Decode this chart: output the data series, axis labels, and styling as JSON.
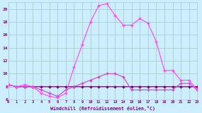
{
  "xlabel": "Windchill (Refroidissement éolien,°C)",
  "bg_color": "#cceeff",
  "grid_color": "#aacccc",
  "line_color_dark": "#660066",
  "line_color_mid": "#cc44cc",
  "line_color_bright": "#ff44ff",
  "xmin": 0,
  "xmax": 23,
  "ymin": 6,
  "ymax": 21,
  "yticks": [
    6,
    8,
    10,
    12,
    14,
    16,
    18,
    20
  ],
  "xticks": [
    0,
    1,
    2,
    3,
    4,
    5,
    6,
    7,
    8,
    9,
    10,
    11,
    12,
    13,
    14,
    15,
    16,
    17,
    18,
    19,
    20,
    21,
    22,
    23
  ],
  "series1_x": [
    0,
    1,
    2,
    3,
    4,
    5,
    6,
    7,
    8,
    9,
    10,
    11,
    12,
    13,
    14,
    15,
    16,
    17,
    18,
    19,
    20,
    21,
    22,
    23
  ],
  "series1_y": [
    8.3,
    8.0,
    8.0,
    8.0,
    8.0,
    8.0,
    8.0,
    8.0,
    8.0,
    8.0,
    8.0,
    8.0,
    8.0,
    8.0,
    8.0,
    8.0,
    8.0,
    8.0,
    8.0,
    8.0,
    8.0,
    8.0,
    8.0,
    8.0
  ],
  "series2_x": [
    0,
    1,
    2,
    3,
    4,
    5,
    6,
    7,
    8,
    9,
    10,
    11,
    12,
    13,
    14,
    15,
    16,
    17,
    18,
    19,
    20,
    21,
    22,
    23
  ],
  "series2_y": [
    8.3,
    8.0,
    8.0,
    8.0,
    7.5,
    7.0,
    6.5,
    7.5,
    8.0,
    8.5,
    9.0,
    9.5,
    10.0,
    10.0,
    9.5,
    7.5,
    7.5,
    7.5,
    7.5,
    7.5,
    7.5,
    8.5,
    8.5,
    7.5
  ],
  "series3_x": [
    0,
    1,
    2,
    3,
    4,
    5,
    6,
    7,
    8,
    9,
    10,
    11,
    12,
    13,
    14,
    15,
    16,
    17,
    18,
    19,
    20,
    21,
    22,
    23
  ],
  "series3_y": [
    8.3,
    8.0,
    8.3,
    8.0,
    7.0,
    6.5,
    6.3,
    7.0,
    11.0,
    14.5,
    18.0,
    20.5,
    20.8,
    19.0,
    17.5,
    17.5,
    18.5,
    17.8,
    15.0,
    10.5,
    10.5,
    9.0,
    9.0,
    7.5
  ]
}
